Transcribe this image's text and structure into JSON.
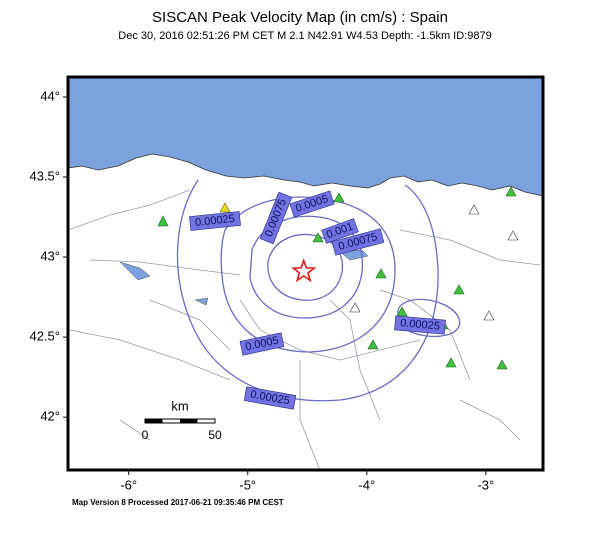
{
  "title": "SISCAN Peak Velocity Map (in cm/s) : Spain",
  "subtitle": "Dec 30, 2016 02:51:26 PM CET   M 2.1   N42.91 W4.53   Depth: -1.5km   ID:9879",
  "map": {
    "lonlim": [
      -6.51,
      -2.52
    ],
    "latlim": [
      41.67,
      44.125
    ],
    "lonticks": [
      {
        "value": -6,
        "label": "-6°"
      },
      {
        "value": -5,
        "label": "-5°"
      },
      {
        "value": -4,
        "label": "-4°"
      },
      {
        "value": -3,
        "label": "-3°"
      }
    ],
    "latticks": [
      {
        "value": 44,
        "label": "44°"
      },
      {
        "value": 43.5,
        "label": "43.5°"
      },
      {
        "value": 43,
        "label": "43°"
      },
      {
        "value": 42.5,
        "label": "42.5°"
      },
      {
        "value": 42,
        "label": "42°"
      }
    ],
    "epicenter": {
      "lon": -4.53,
      "lat": 42.91
    }
  },
  "contour_labels": [
    "0.00025",
    "0.00075",
    "0.0005",
    "0.001",
    "0.00075",
    "0.00025",
    "0.0005",
    "0.00025"
  ],
  "scale": {
    "unit": "km",
    "labels": [
      "0",
      "50"
    ]
  },
  "footer": "Map Version 8 Processed 2017-06-21 09:35:46 PM CEST"
}
